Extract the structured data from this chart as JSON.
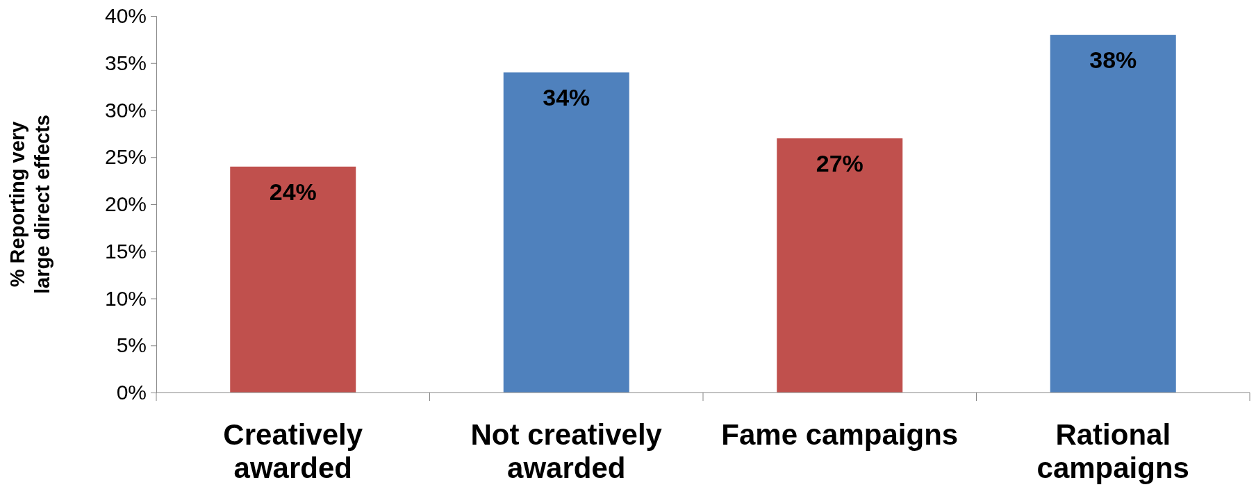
{
  "chart_data": {
    "type": "bar",
    "ylabel": "% Reporting very large direct effects",
    "categories": [
      "Creatively awarded",
      "Not creatively awarded",
      "Fame campaigns",
      "Rational campaigns"
    ],
    "values": [
      24,
      34,
      27,
      38
    ],
    "colors": [
      "#c0504d",
      "#4f81bd",
      "#c0504d",
      "#4f81bd"
    ],
    "value_labels": [
      "24%",
      "34%",
      "27%",
      "38%"
    ],
    "ylim": [
      0,
      40
    ],
    "yticks": [
      {
        "value": 0,
        "label": "0%"
      },
      {
        "value": 5,
        "label": "5%"
      },
      {
        "value": 10,
        "label": "10%"
      },
      {
        "value": 15,
        "label": "15%"
      },
      {
        "value": 20,
        "label": "20%"
      },
      {
        "value": 25,
        "label": "25%"
      },
      {
        "value": 30,
        "label": "30%"
      },
      {
        "value": 35,
        "label": "35%"
      },
      {
        "value": 40,
        "label": "40%"
      }
    ],
    "grid": false
  }
}
